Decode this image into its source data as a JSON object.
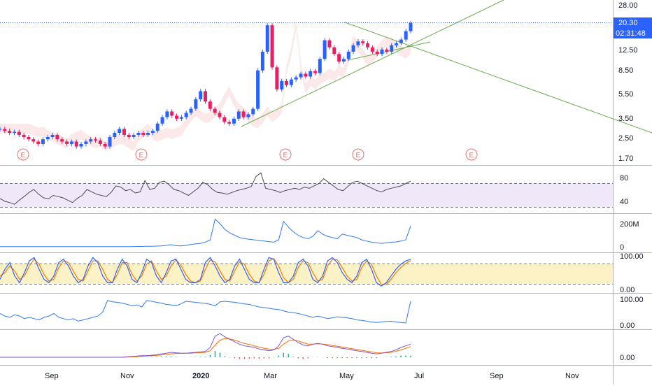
{
  "chart_data": {
    "type": "line",
    "x_axis": {
      "tick_labels": [
        "Sep",
        "Nov",
        "2020",
        "Mar",
        "May",
        "Jul",
        "Sep",
        "Nov"
      ]
    },
    "price_pane": {
      "y_scale": "log",
      "y_range": [
        1.5,
        30
      ],
      "y_ticks": [
        28.0,
        20.3,
        12.5,
        8.5,
        5.5,
        3.5,
        2.5,
        1.7
      ],
      "y_tick_labels": [
        "28.00",
        "12.50",
        "8.50",
        "5.50",
        "3.50",
        "2.50",
        "1.70"
      ],
      "last_price_label": "20.30",
      "countdown_label": "02:31:48",
      "last_price": 20.3,
      "earnings_markers": [
        "E",
        "E",
        "E",
        "E",
        "E"
      ],
      "price_series": [
        2.9,
        2.8,
        2.7,
        2.75,
        2.6,
        2.5,
        2.4,
        2.3,
        2.2,
        2.4,
        2.5,
        2.6,
        2.4,
        2.3,
        2.2,
        2.3,
        2.1,
        2.2,
        2.3,
        2.4,
        2.35,
        2.2,
        2.1,
        2.5,
        2.7,
        2.9,
        2.6,
        2.5,
        2.6,
        2.7,
        2.6,
        2.7,
        2.8,
        3.2,
        3.6,
        4.0,
        3.7,
        3.5,
        3.6,
        3.9,
        4.2,
        5.0,
        5.8,
        4.8,
        4.2,
        3.9,
        3.6,
        3.3,
        3.2,
        3.5,
        4.0,
        3.6,
        3.8,
        4.2,
        8.5,
        12.0,
        19.5,
        9.0,
        6.0,
        7.0,
        6.5,
        7.2,
        7.5,
        8.0,
        7.6,
        8.4,
        8.1,
        10.5,
        14.8,
        13.0,
        11.5,
        10.0,
        10.5,
        12.0,
        13.5,
        14.5,
        14.0,
        13.0,
        12.0,
        11.5,
        12.5,
        12.0,
        13.5,
        14.0,
        15.0,
        17.5,
        20.3
      ],
      "trendlines": [
        {
          "from": [
            345,
            181
          ],
          "to": [
            720,
            0
          ]
        },
        {
          "from": [
            493,
            32
          ],
          "to": [
            932,
            190
          ]
        },
        {
          "from": [
            497,
            86
          ],
          "to": [
            615,
            60
          ]
        }
      ]
    },
    "rsi_pane": {
      "y_ticks": [
        80,
        40
      ],
      "y_tick_labels": [
        "80",
        "40"
      ],
      "overbought": 70,
      "oversold": 30,
      "values": [
        45,
        40,
        38,
        35,
        42,
        48,
        55,
        60,
        52,
        46,
        44,
        50,
        48,
        46,
        42,
        38,
        45,
        50,
        60,
        56,
        52,
        50,
        48,
        55,
        66,
        64,
        58,
        60,
        54,
        56,
        75,
        60,
        62,
        72,
        74,
        68,
        60,
        58,
        54,
        50,
        56,
        62,
        72,
        68,
        60,
        55,
        54,
        52,
        55,
        58,
        60,
        62,
        65,
        82,
        88,
        62,
        60,
        58,
        55,
        58,
        60,
        62,
        60,
        64,
        62,
        66,
        70,
        78,
        72,
        66,
        60,
        58,
        65,
        72,
        74,
        70,
        66,
        62,
        58,
        56,
        60,
        62,
        64,
        66,
        70,
        74
      ]
    },
    "volume_pane": {
      "y_ticks": [
        200,
        0
      ],
      "y_tick_labels": [
        "200M",
        "0"
      ],
      "unit": "M",
      "values": [
        2,
        2,
        2,
        2,
        2,
        2,
        2,
        2,
        2,
        2,
        2,
        2,
        2,
        2,
        2,
        2,
        2,
        2,
        2,
        2,
        2,
        2,
        2,
        2,
        2,
        2,
        2,
        2,
        3,
        3,
        4,
        5,
        6,
        8,
        12,
        18,
        10,
        8,
        12,
        20,
        25,
        30,
        40,
        60,
        240,
        200,
        150,
        120,
        100,
        80,
        70,
        65,
        60,
        55,
        50,
        45,
        40,
        60,
        220,
        170,
        130,
        100,
        80,
        70,
        90,
        140,
        110,
        90,
        80,
        70,
        110,
        100,
        90,
        80,
        60,
        50,
        40,
        35,
        30,
        35,
        40,
        42,
        50,
        60,
        180
      ]
    },
    "stoch_pane": {
      "y_ticks": [
        100,
        0
      ],
      "y_tick_labels": [
        "100.00",
        "0.00"
      ],
      "band_upper": 80,
      "band_lower": 20,
      "k_values": [
        30,
        60,
        80,
        40,
        20,
        50,
        85,
        95,
        60,
        30,
        20,
        40,
        80,
        90,
        70,
        40,
        20,
        30,
        70,
        95,
        80,
        40,
        20,
        20,
        60,
        90,
        70,
        30,
        20,
        50,
        90,
        80,
        40,
        20,
        50,
        85,
        90,
        60,
        30,
        20,
        20,
        30,
        80,
        95,
        70,
        40,
        20,
        30,
        70,
        90,
        60,
        30,
        20,
        20,
        60,
        95,
        90,
        50,
        20,
        20,
        40,
        80,
        90,
        70,
        30,
        20,
        40,
        85,
        95,
        80,
        50,
        30,
        20,
        40,
        80,
        90,
        60,
        20,
        10,
        20,
        40,
        60,
        75,
        85,
        90
      ],
      "d_values": [
        40,
        50,
        70,
        55,
        30,
        40,
        70,
        90,
        75,
        45,
        25,
        30,
        65,
        85,
        80,
        55,
        30,
        25,
        55,
        85,
        85,
        60,
        30,
        20,
        45,
        80,
        80,
        45,
        25,
        40,
        75,
        85,
        55,
        30,
        40,
        70,
        88,
        72,
        45,
        25,
        20,
        25,
        60,
        88,
        82,
        55,
        30,
        25,
        55,
        82,
        75,
        45,
        25,
        20,
        45,
        85,
        92,
        70,
        35,
        20,
        30,
        65,
        85,
        80,
        50,
        25,
        30,
        70,
        90,
        88,
        65,
        40,
        25,
        30,
        65,
        85,
        75,
        40,
        15,
        15,
        30,
        50,
        65,
        78,
        86
      ]
    },
    "line_pane": {
      "y_ticks": [
        100,
        0
      ],
      "y_tick_labels": [
        "100.00",
        "0.00"
      ],
      "values": [
        45,
        35,
        30,
        40,
        35,
        25,
        30,
        25,
        20,
        30,
        35,
        45,
        30,
        25,
        20,
        25,
        15,
        20,
        25,
        30,
        35,
        50,
        95,
        90,
        88,
        85,
        80,
        75,
        78,
        70,
        95,
        92,
        88,
        85,
        80,
        78,
        75,
        82,
        92,
        90,
        88,
        86,
        84,
        80,
        75,
        90,
        92,
        90,
        88,
        85,
        82,
        80,
        75,
        70,
        68,
        65,
        62,
        60,
        55,
        50,
        48,
        45,
        40,
        35,
        30,
        35,
        30,
        25,
        28,
        32,
        30,
        28,
        25,
        20,
        18,
        15,
        12,
        10,
        12,
        14,
        15,
        12,
        10,
        8,
        92
      ]
    },
    "macd_pane": {
      "y_ticks": [
        0
      ],
      "y_tick_labels": [
        "0.00"
      ],
      "macd_values": [
        0,
        0,
        0,
        0,
        0,
        0,
        0,
        0,
        0,
        0,
        0,
        0,
        0,
        0,
        0,
        0,
        0,
        0,
        0,
        0,
        0,
        0,
        0,
        0,
        0,
        0,
        0.05,
        0.1,
        0.15,
        0.2,
        0.2,
        0.25,
        0.3,
        0.4,
        0.5,
        0.6,
        0.55,
        0.5,
        0.5,
        0.55,
        0.6,
        0.65,
        0.7,
        1.2,
        2.6,
        2.9,
        2.5,
        2.2,
        1.9,
        1.6,
        1.4,
        1.3,
        1.2,
        1.0,
        0.9,
        0.8,
        0.9,
        1.4,
        2.4,
        2.6,
        2.2,
        1.8,
        1.5,
        1.4,
        1.6,
        1.7,
        1.6,
        1.4,
        1.3,
        1.2,
        1.1,
        1.0,
        0.9,
        0.8,
        0.7,
        0.6,
        0.5,
        0.4,
        0.5,
        0.6,
        0.7,
        0.9,
        1.2,
        1.4,
        1.6
      ],
      "signal_values": [
        0,
        0,
        0,
        0,
        0,
        0,
        0,
        0,
        0,
        0,
        0,
        0,
        0,
        0,
        0,
        0,
        0,
        0,
        0,
        0,
        0,
        0,
        0,
        0,
        0,
        0,
        0.02,
        0.05,
        0.08,
        0.12,
        0.15,
        0.18,
        0.22,
        0.28,
        0.35,
        0.42,
        0.47,
        0.48,
        0.49,
        0.5,
        0.53,
        0.56,
        0.6,
        0.8,
        1.5,
        2.1,
        2.3,
        2.25,
        2.1,
        1.9,
        1.7,
        1.55,
        1.4,
        1.25,
        1.1,
        1.0,
        0.95,
        1.1,
        1.6,
        2.0,
        2.1,
        2.0,
        1.8,
        1.6,
        1.6,
        1.65,
        1.62,
        1.55,
        1.45,
        1.35,
        1.25,
        1.15,
        1.05,
        0.95,
        0.85,
        0.75,
        0.65,
        0.55,
        0.52,
        0.55,
        0.6,
        0.72,
        0.9,
        1.1,
        1.3
      ]
    }
  }
}
